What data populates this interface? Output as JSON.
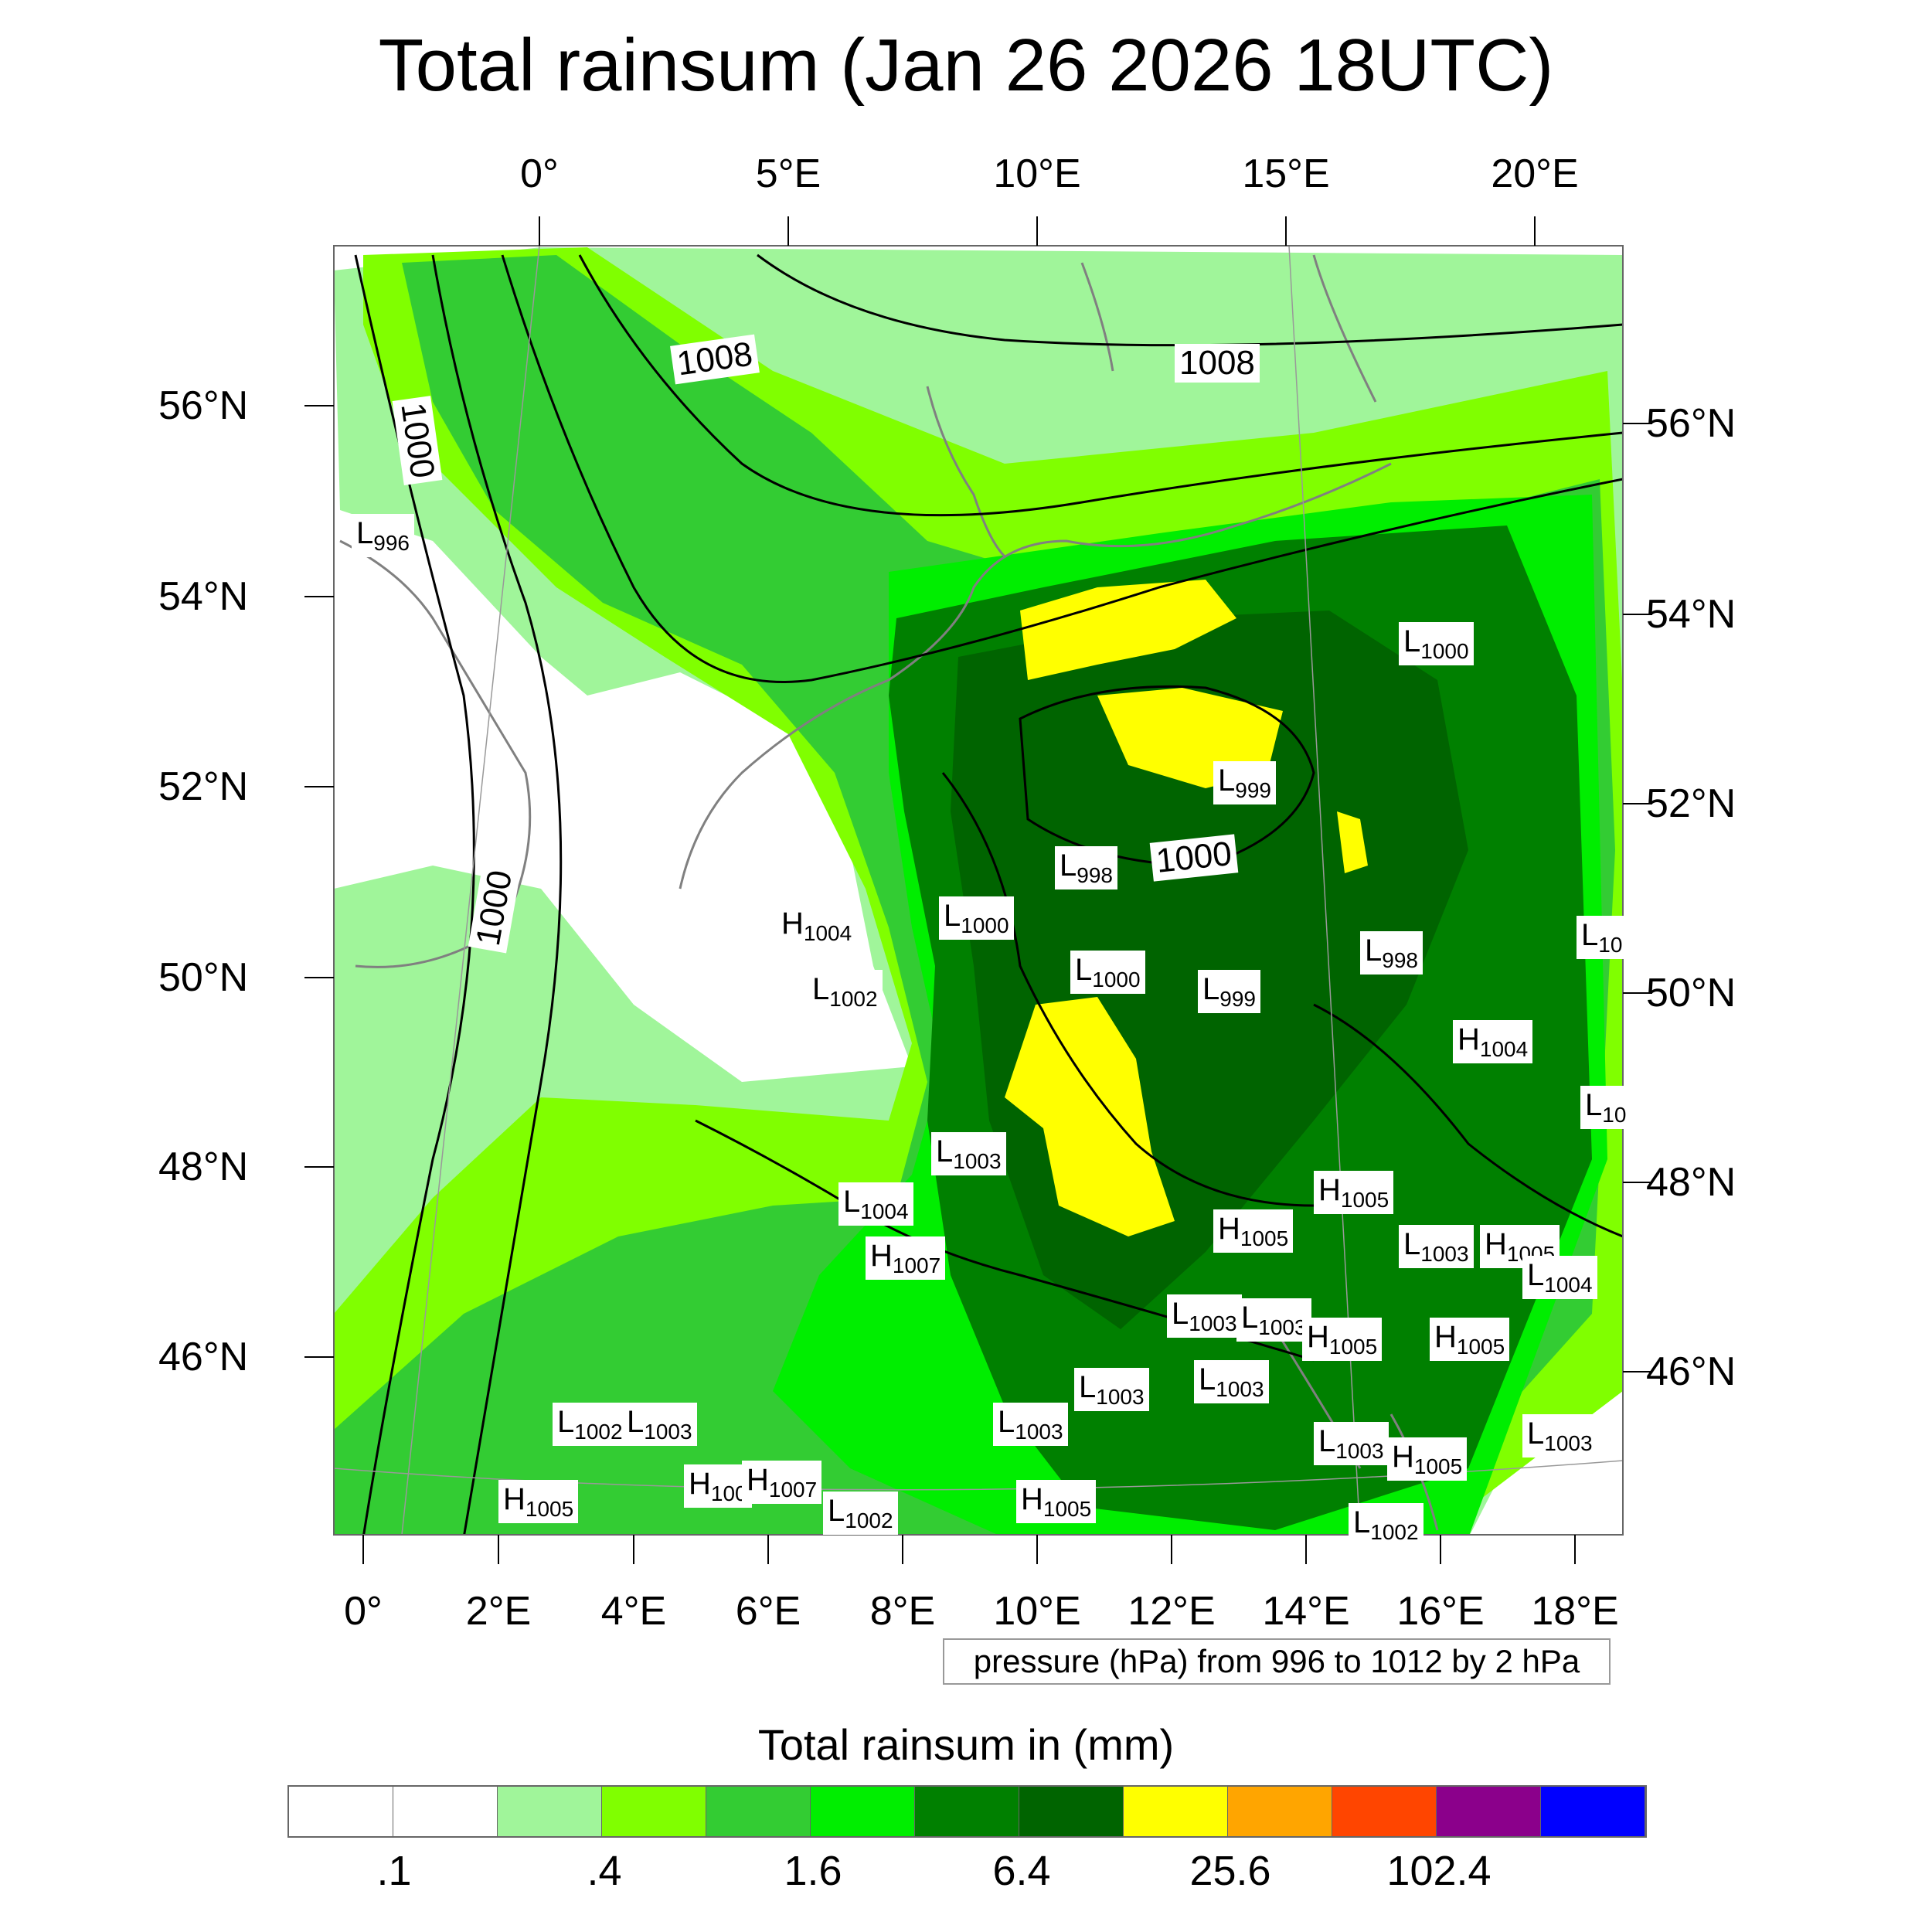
{
  "title": "Total rainsum (Jan 26 2026 18UTC)",
  "top_axis": [
    "0°",
    "5°E",
    "10°E",
    "15°E",
    "20°E"
  ],
  "bottom_axis": [
    "0°",
    "2°E",
    "4°E",
    "6°E",
    "8°E",
    "10°E",
    "12°E",
    "14°E",
    "16°E",
    "18°E"
  ],
  "left_axis": [
    "56°N",
    "54°N",
    "52°N",
    "50°N",
    "48°N",
    "46°N"
  ],
  "right_axis": [
    "56°N",
    "54°N",
    "52°N",
    "50°N",
    "48°N",
    "46°N"
  ],
  "isobar_labels": [
    "1008",
    "1008",
    "1000",
    "1000",
    "1000"
  ],
  "pressure_centers": [
    {
      "t": "L",
      "v": "996"
    },
    {
      "t": "L",
      "v": "1000"
    },
    {
      "t": "L",
      "v": "999"
    },
    {
      "t": "L",
      "v": "998"
    },
    {
      "t": "H",
      "v": "1004"
    },
    {
      "t": "L",
      "v": "1000"
    },
    {
      "t": "L",
      "v": "1002"
    },
    {
      "t": "L",
      "v": "1000"
    },
    {
      "t": "L",
      "v": "999"
    },
    {
      "t": "L",
      "v": "998"
    },
    {
      "t": "L",
      "v": "10"
    },
    {
      "t": "H",
      "v": "1004"
    },
    {
      "t": "L",
      "v": "10"
    },
    {
      "t": "L",
      "v": "1003"
    },
    {
      "t": "L",
      "v": "1004"
    },
    {
      "t": "H",
      "v": "1007"
    },
    {
      "t": "H",
      "v": "1005"
    },
    {
      "t": "H",
      "v": "1005"
    },
    {
      "t": "L",
      "v": "1003"
    },
    {
      "t": "H",
      "v": "1005"
    },
    {
      "t": "L",
      "v": "1004"
    },
    {
      "t": "L",
      "v": "1003"
    },
    {
      "t": "L",
      "v": "1003"
    },
    {
      "t": "H",
      "v": "1005"
    },
    {
      "t": "H",
      "v": "1005"
    },
    {
      "t": "L",
      "v": "1003"
    },
    {
      "t": "L",
      "v": "1003"
    },
    {
      "t": "L",
      "v": "1003"
    },
    {
      "t": "L",
      "v": "1003"
    },
    {
      "t": "L",
      "v": "1003"
    },
    {
      "t": "H",
      "v": "1005"
    },
    {
      "t": "L",
      "v": "1003"
    },
    {
      "t": "L",
      "v": "1002"
    },
    {
      "t": "L",
      "v": "1003"
    },
    {
      "t": "H",
      "v": "1005"
    },
    {
      "t": "H",
      "v": "100"
    },
    {
      "t": "H",
      "v": "1007"
    },
    {
      "t": "L",
      "v": "1002"
    },
    {
      "t": "H",
      "v": "1005"
    },
    {
      "t": "L",
      "v": "1002"
    }
  ],
  "contour_note": "pressure (hPa) from 996 to 1012 by 2 hPa",
  "colorbar": {
    "title": "Total rainsum in (mm)",
    "colors": [
      "#ffffff",
      "#ffffff",
      "#a0f59a",
      "#80ff00",
      "#33cc33",
      "#00ee00",
      "#008000",
      "#006400",
      "#ffff00",
      "#ffa500",
      "#ff4500",
      "#8b008b",
      "#0000ff"
    ],
    "labels": [
      ".1",
      ".4",
      "1.6",
      "6.4",
      "25.6",
      "102.4"
    ]
  }
}
